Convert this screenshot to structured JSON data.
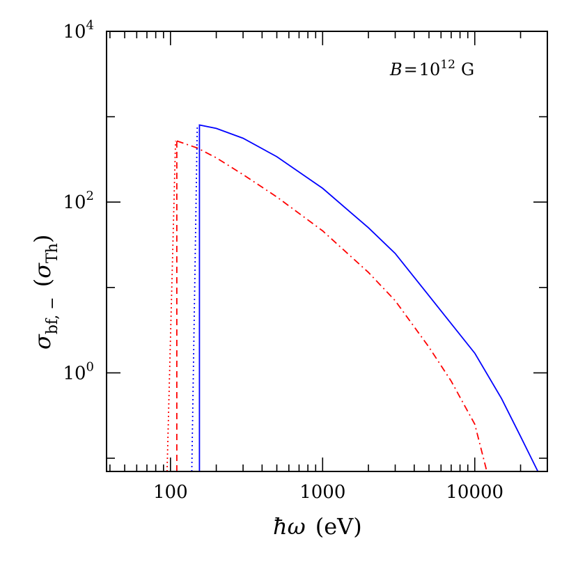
{
  "chart_data": {
    "type": "line",
    "xscale": "log",
    "yscale": "log",
    "xlim": [
      38,
      30000
    ],
    "ylim": [
      0.07,
      10000
    ],
    "x_ticks": [
      {
        "value": 100,
        "label": "100"
      },
      {
        "value": 1000,
        "label": "1000"
      },
      {
        "value": 10000,
        "label": "10000"
      }
    ],
    "y_ticks": [
      {
        "value": 1,
        "base": "10",
        "exp": "0"
      },
      {
        "value": 100,
        "base": "10",
        "exp": "2"
      },
      {
        "value": 10000,
        "base": "10",
        "exp": "4"
      }
    ],
    "xlabel": {
      "symbol": "ħω",
      "unit": "(eV)"
    },
    "ylabel": {
      "symbol": "σ",
      "sub": "bf, −",
      "unit_symbol": "σ",
      "unit_sub": "Th"
    },
    "annotation": {
      "symbol": "B",
      "eq": "=",
      "base": "10",
      "exp": "12",
      "unit": "G"
    },
    "series": [
      {
        "color": "#ff0000",
        "dash": "dot",
        "points": [
          [
            95,
            0.07
          ],
          [
            108,
            520
          ]
        ]
      },
      {
        "color": "#ff0000",
        "dash": "dash",
        "points": [
          [
            110,
            0.07
          ],
          [
            110,
            520
          ]
        ]
      },
      {
        "color": "#ff0000",
        "dash": "dashdot",
        "points": [
          [
            110,
            520
          ],
          [
            150,
            430
          ],
          [
            200,
            330
          ],
          [
            300,
            210
          ],
          [
            500,
            115
          ],
          [
            1000,
            46
          ],
          [
            2000,
            15
          ],
          [
            3000,
            7
          ],
          [
            5000,
            2
          ],
          [
            7000,
            0.8
          ],
          [
            10000,
            0.25
          ],
          [
            12000,
            0.07
          ]
        ]
      },
      {
        "color": "#0000ff",
        "dash": "dot",
        "points": [
          [
            138,
            0.07
          ],
          [
            150,
            800
          ]
        ]
      },
      {
        "color": "#0000ff",
        "dash": "solid",
        "points": [
          [
            155,
            0.07
          ],
          [
            155,
            800
          ],
          [
            200,
            730
          ],
          [
            300,
            560
          ],
          [
            500,
            340
          ],
          [
            1000,
            145
          ],
          [
            2000,
            50
          ],
          [
            3000,
            25
          ],
          [
            5000,
            8
          ],
          [
            10000,
            1.7
          ],
          [
            15000,
            0.5
          ],
          [
            20000,
            0.18
          ],
          [
            26000,
            0.07
          ]
        ]
      }
    ]
  }
}
